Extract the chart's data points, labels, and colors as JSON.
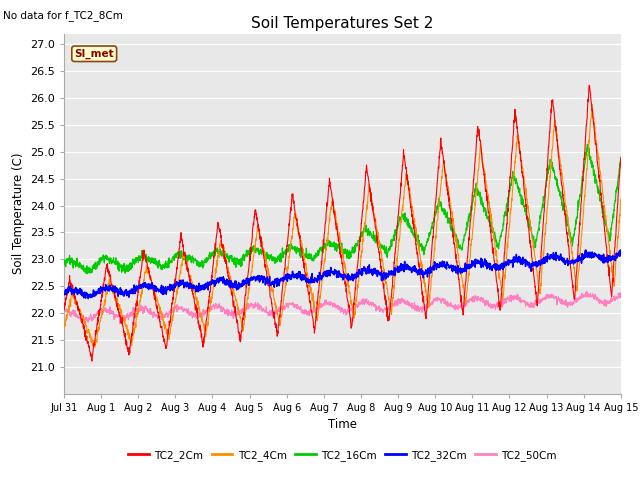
{
  "title": "Soil Temperatures Set 2",
  "no_data_text": "No data for f_TC2_8Cm",
  "ylabel": "Soil Temperature (C)",
  "xlabel": "Time",
  "simet_label": "SI_met",
  "ylim": [
    20.5,
    27.2
  ],
  "yticks": [
    21.0,
    21.5,
    22.0,
    22.5,
    23.0,
    23.5,
    24.0,
    24.5,
    25.0,
    25.5,
    26.0,
    26.5,
    27.0
  ],
  "xtick_labels": [
    "Jul 31",
    "Aug 1",
    "Aug 2",
    "Aug 3",
    "Aug 4",
    "Aug 5",
    "Aug 6",
    "Aug 7",
    "Aug 8",
    "Aug 9",
    "Aug 10",
    "Aug 11",
    "Aug 12",
    "Aug 13",
    "Aug 14",
    "Aug 15"
  ],
  "legend_entries": [
    "TC2_2Cm",
    "TC2_4Cm",
    "TC2_16Cm",
    "TC2_32Cm",
    "TC2_50Cm"
  ],
  "line_colors": [
    "#FF0000",
    "#FF8C00",
    "#00CC00",
    "#0000FF",
    "#FF80C0"
  ],
  "fig_bg_color": "#FFFFFF",
  "plot_bg_color": "#E8E8E8",
  "n_days": 15,
  "n_points": 2000
}
